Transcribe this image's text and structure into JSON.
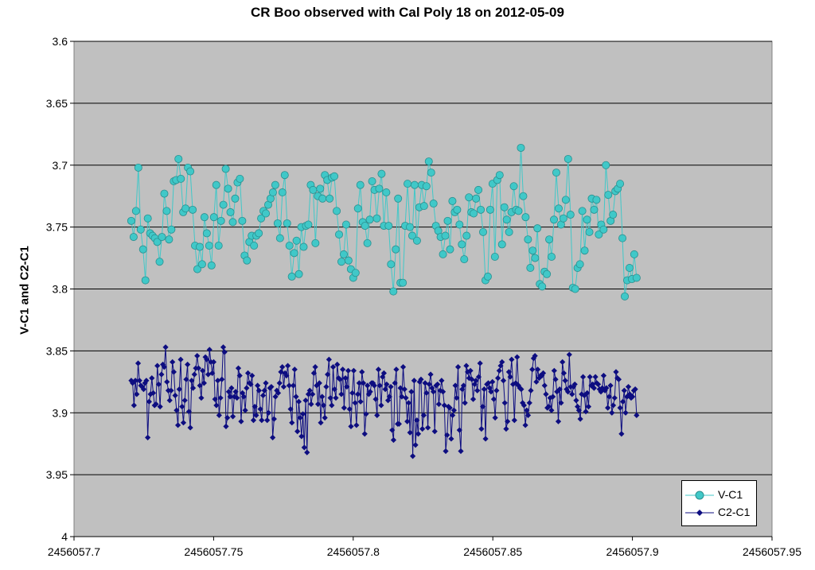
{
  "chart_data": {
    "type": "scatter",
    "title": "CR Boo  observed with Cal Poly 18 on 2012-05-09",
    "xlabel": "",
    "ylabel": "V-C1 and C2-C1",
    "xlim": [
      2456057.7,
      2456057.95
    ],
    "ylim": [
      3.6,
      4.0
    ],
    "y_inverted": true,
    "x_ticks": [
      "2456057.7",
      "2456057.75",
      "2456057.8",
      "2456057.85",
      "2456057.9",
      "2456057.95"
    ],
    "y_ticks": [
      "3.6",
      "3.65",
      "3.7",
      "3.75",
      "3.8",
      "3.85",
      "3.9",
      "3.95",
      "4"
    ],
    "grid": "horizontal",
    "legend_position": "bottom-right",
    "series": [
      {
        "name": "V-C1",
        "color": "#40c8c8",
        "marker": "circle",
        "x_start": 2456057.7205,
        "x_end": 2456057.9015,
        "values": [
          3.745,
          3.758,
          3.737,
          3.702,
          3.752,
          3.768,
          3.793,
          3.743,
          3.755,
          3.757,
          3.759,
          3.762,
          3.778,
          3.758,
          3.723,
          3.737,
          3.76,
          3.752,
          3.713,
          3.712,
          3.695,
          3.711,
          3.738,
          3.735,
          3.702,
          3.705,
          3.736,
          3.765,
          3.784,
          3.766,
          3.78,
          3.742,
          3.755,
          3.765,
          3.781,
          3.742,
          3.716,
          3.765,
          3.745,
          3.732,
          3.703,
          3.719,
          3.738,
          3.746,
          3.727,
          3.714,
          3.711,
          3.745,
          3.773,
          3.777,
          3.762,
          3.757,
          3.765,
          3.757,
          3.755,
          3.743,
          3.737,
          3.739,
          3.732,
          3.727,
          3.722,
          3.716,
          3.747,
          3.759,
          3.722,
          3.708,
          3.747,
          3.765,
          3.79,
          3.771,
          3.761,
          3.788,
          3.75,
          3.766,
          3.749,
          3.748,
          3.716,
          3.72,
          3.763,
          3.725,
          3.719,
          3.727,
          3.708,
          3.712,
          3.727,
          3.71,
          3.709,
          3.737,
          3.756,
          3.778,
          3.772,
          3.748,
          3.777,
          3.784,
          3.791,
          3.787,
          3.735,
          3.716,
          3.746,
          3.749,
          3.763,
          3.744,
          3.713,
          3.72,
          3.743,
          3.719,
          3.707,
          3.749,
          3.722,
          3.749,
          3.78,
          3.802,
          3.768,
          3.727,
          3.795,
          3.795,
          3.749,
          3.715,
          3.75,
          3.757,
          3.716,
          3.761,
          3.734,
          3.716,
          3.733,
          3.717,
          3.697,
          3.706,
          3.731,
          3.749,
          3.753,
          3.758,
          3.772,
          3.757,
          3.745,
          3.768,
          3.729,
          3.738,
          3.736,
          3.748,
          3.764,
          3.776,
          3.757,
          3.726,
          3.738,
          3.739,
          3.727,
          3.72,
          3.736,
          3.754,
          3.793,
          3.79,
          3.736,
          3.715,
          3.774,
          3.712,
          3.708,
          3.764,
          3.734,
          3.744,
          3.754,
          3.738,
          3.717,
          3.736,
          3.737,
          3.686,
          3.725,
          3.742,
          3.76,
          3.783,
          3.769,
          3.775,
          3.751,
          3.796,
          3.798,
          3.786,
          3.788,
          3.76,
          3.774,
          3.744,
          3.706,
          3.735,
          3.748,
          3.743,
          3.728,
          3.695,
          3.74,
          3.799,
          3.8,
          3.783,
          3.78,
          3.737,
          3.769,
          3.744,
          3.754,
          3.727,
          3.736,
          3.728,
          3.756,
          3.748,
          3.752,
          3.7,
          3.724,
          3.745,
          3.74,
          3.721,
          3.719,
          3.715,
          3.759,
          3.806,
          3.793,
          3.783,
          3.792,
          3.772,
          3.791
        ]
      },
      {
        "name": "C2-C1",
        "color": "#0d0d80",
        "marker": "diamond",
        "x_start": 2456057.7205,
        "x_end": 2456057.9015,
        "values": [
          3.874,
          3.876,
          3.894,
          3.874,
          3.885,
          3.86,
          3.874,
          3.878,
          3.879,
          3.881,
          3.876,
          3.874,
          3.92,
          3.891,
          3.885,
          3.872,
          3.884,
          3.894,
          3.893,
          3.862,
          3.877,
          3.895,
          3.869,
          3.861,
          3.863,
          3.847,
          3.875,
          3.882,
          3.89,
          3.882,
          3.859,
          3.867,
          3.886,
          3.898,
          3.91,
          3.881,
          3.857,
          3.895,
          3.908,
          3.89,
          3.873,
          3.861,
          3.899,
          3.912,
          3.874,
          3.88,
          3.869,
          3.864,
          3.854,
          3.864,
          3.878,
          3.888,
          3.866,
          3.876,
          3.855,
          3.857,
          3.869,
          3.849,
          3.859,
          3.868,
          3.859,
          3.889,
          3.894,
          3.874,
          3.902,
          3.888,
          3.873,
          3.847,
          3.851,
          3.911,
          3.904,
          3.883,
          3.887,
          3.88,
          3.903,
          3.887,
          3.883,
          3.888,
          3.864,
          3.87,
          3.907,
          3.884,
          3.887,
          3.898,
          3.88,
          3.868,
          3.876,
          3.877,
          3.87,
          3.906,
          3.895,
          3.902,
          3.878,
          3.882,
          3.897,
          3.906,
          3.886,
          3.882,
          3.876,
          3.906,
          3.9,
          3.88,
          3.879,
          3.92,
          3.905,
          3.887,
          3.882,
          3.884,
          3.876,
          3.867,
          3.863,
          3.879,
          3.868,
          3.87,
          3.862,
          3.878,
          3.897,
          3.908,
          3.878,
          3.865,
          3.887,
          3.915,
          3.891,
          3.904,
          3.919,
          3.901,
          3.928,
          3.89,
          3.932,
          3.885,
          3.882,
          3.893,
          3.885,
          3.868,
          3.863,
          3.878,
          3.893,
          3.876,
          3.908,
          3.887,
          3.894,
          3.904,
          3.879,
          3.869,
          3.857,
          3.888,
          3.894,
          3.863,
          3.881,
          3.888,
          3.861,
          3.872,
          3.873,
          3.885,
          3.865,
          3.896,
          3.872,
          3.879,
          3.866,
          3.897,
          3.911,
          3.884,
          3.866,
          3.892,
          3.91,
          3.885,
          3.876,
          3.891,
          3.867,
          3.876,
          3.917,
          3.901,
          3.878,
          3.885,
          3.883,
          3.876,
          3.876,
          3.878,
          3.889,
          3.902,
          3.865,
          3.878,
          3.894,
          3.871,
          3.868,
          3.881,
          3.877,
          3.89,
          3.887,
          3.879,
          3.914,
          3.922,
          3.876,
          3.865,
          3.909,
          3.909,
          3.88,
          3.887,
          3.863,
          3.881,
          3.888,
          3.907,
          3.892,
          3.916,
          3.883,
          3.935,
          3.874,
          3.926,
          3.906,
          3.917,
          3.875,
          3.873,
          3.913,
          3.902,
          3.876,
          3.884,
          3.912,
          3.877,
          3.869,
          3.88,
          3.883,
          3.915,
          3.878,
          3.877,
          3.893,
          3.882,
          3.874,
          3.883,
          3.894,
          3.931,
          3.918,
          3.895,
          3.896,
          3.921,
          3.902,
          3.898,
          3.878,
          3.888,
          3.863,
          3.914,
          3.931,
          3.881,
          3.878,
          3.892,
          3.862,
          3.867,
          3.872,
          3.866,
          3.873,
          3.889,
          3.877,
          3.874,
          3.882,
          3.871,
          3.86,
          3.913,
          3.895,
          3.881,
          3.921,
          3.877,
          3.876,
          3.88,
          3.883,
          3.875,
          3.889,
          3.904,
          3.882,
          3.872,
          3.866,
          3.862,
          3.859,
          3.874,
          3.892,
          3.913,
          3.907,
          3.867,
          3.871,
          3.857,
          3.877,
          3.906,
          3.876,
          3.855,
          3.878,
          3.88,
          3.881,
          3.892,
          3.894,
          3.91,
          3.898,
          3.902,
          3.892,
          3.882,
          3.865,
          3.856,
          3.854,
          3.875,
          3.865,
          3.872,
          3.87,
          3.87,
          3.868,
          3.878,
          3.885,
          3.896,
          3.895,
          3.888,
          3.898,
          3.887,
          3.866,
          3.873,
          3.883,
          3.907,
          3.881,
          3.892,
          3.859,
          3.868,
          3.874,
          3.881,
          3.883,
          3.853,
          3.879,
          3.885,
          3.879,
          3.877,
          3.89,
          3.895,
          3.898,
          3.905,
          3.885,
          3.871,
          3.886,
          3.899,
          3.884,
          3.895,
          3.871,
          3.878,
          3.877,
          3.88,
          3.871,
          3.876,
          3.877,
          3.881,
          3.883,
          3.88,
          3.87,
          3.882,
          3.88,
          3.896,
          3.887,
          3.878,
          3.9,
          3.894,
          3.888,
          3.867,
          3.872,
          3.873,
          3.896,
          3.917,
          3.891,
          3.882,
          3.9,
          3.887,
          3.879,
          3.885,
          3.888,
          3.887,
          3.882,
          3.881,
          3.902
        ]
      }
    ]
  },
  "legend": {
    "items": [
      {
        "label": "V-C1"
      },
      {
        "label": "C2-C1"
      }
    ]
  }
}
